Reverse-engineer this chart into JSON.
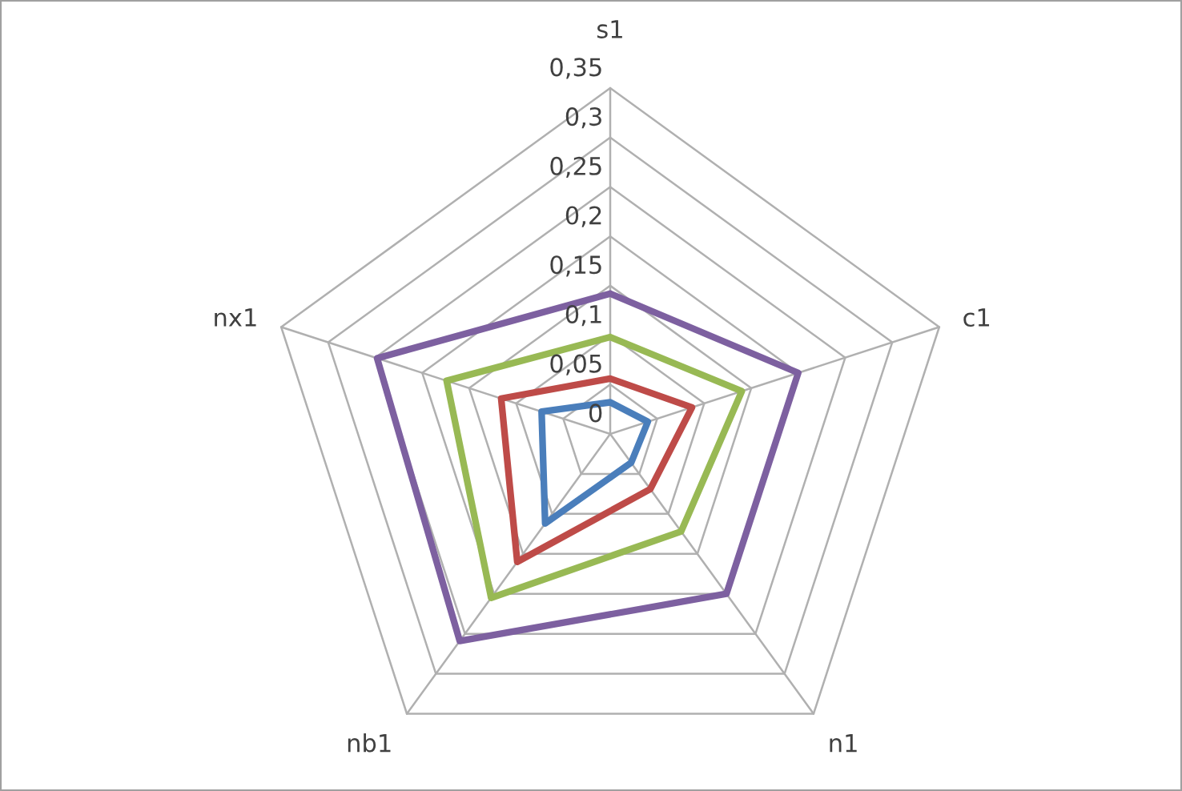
{
  "chart_data": {
    "type": "radar",
    "categories": [
      "s1",
      "c1",
      "n1",
      "nb1",
      "nx1"
    ],
    "series": [
      {
        "color": "#4a7ebb",
        "values": [
          0.032,
          0.04,
          0.036,
          0.112,
          0.073
        ]
      },
      {
        "color": "#be4b48",
        "values": [
          0.056,
          0.087,
          0.069,
          0.16,
          0.116
        ]
      },
      {
        "color": "#98b954",
        "values": [
          0.098,
          0.14,
          0.122,
          0.205,
          0.174
        ]
      },
      {
        "color": "#7d60a0",
        "values": [
          0.142,
          0.2,
          0.2,
          0.259,
          0.248
        ]
      }
    ],
    "ylim": [
      0,
      0.35
    ],
    "yticks": [
      {
        "value": 0,
        "label": "0"
      },
      {
        "value": 0.05,
        "label": "0,05"
      },
      {
        "value": 0.1,
        "label": "0,1"
      },
      {
        "value": 0.15,
        "label": "0,15"
      },
      {
        "value": 0.2,
        "label": "0,2"
      },
      {
        "value": 0.25,
        "label": "0,25"
      },
      {
        "value": 0.3,
        "label": "0,3"
      },
      {
        "value": 0.35,
        "label": "0,35"
      }
    ],
    "grid": true,
    "marker": "none",
    "line_style": "solid"
  }
}
